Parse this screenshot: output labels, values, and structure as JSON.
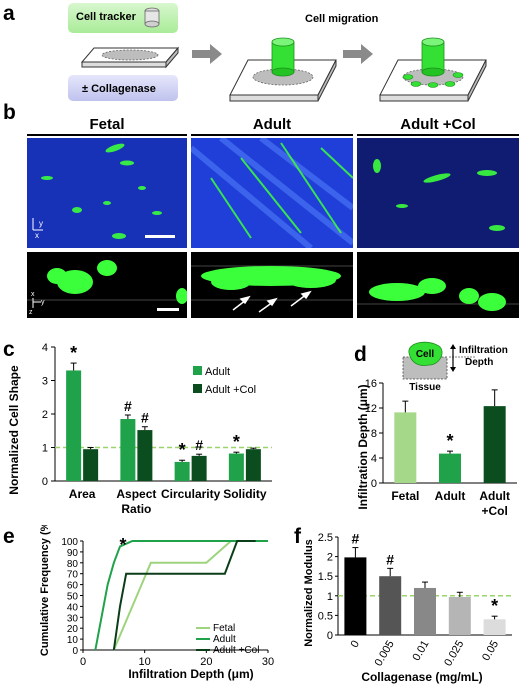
{
  "panels": {
    "a": {
      "label": "a",
      "cell_tracker": "Cell tracker",
      "collagenase": "± Collagenase",
      "cell_migration": "Cell migration",
      "colors": {
        "tracker_bg": "#b9f0a8",
        "collagenase_bg": "#c7c9ef",
        "cell": "#33e033",
        "arrow": "#8a8a8a"
      }
    },
    "b": {
      "label": "b",
      "columns": [
        "Fetal",
        "Adult",
        "Adult +Col"
      ],
      "axis_top": {
        "x": "x",
        "y": "y"
      },
      "axis_bottom": {
        "x": "x",
        "y": "y",
        "z": "z"
      },
      "colors": {
        "tissue": "#1f3fd8",
        "cells": "#3cff3c"
      }
    },
    "c": {
      "label": "c",
      "sig_marks": [
        "*",
        "#",
        "#",
        "*",
        "#",
        "*"
      ]
    },
    "d": {
      "label": "d",
      "cell_label": "Cell",
      "tissue_label": "Tissue",
      "infiltration_label": "Infiltration",
      "depth_label": "Depth",
      "sig_marks": [
        "*"
      ]
    },
    "e": {
      "label": "e",
      "sig_marks": [
        "*"
      ]
    },
    "f": {
      "label": "f",
      "sig_marks": [
        "#",
        "#",
        "*"
      ]
    }
  },
  "chart_data": [
    {
      "id": "c",
      "type": "bar",
      "ylabel": "Normalized Cell Shape",
      "categories": [
        "Area",
        "Aspect Ratio",
        "Circularity",
        "Solidity"
      ],
      "series": [
        {
          "name": "Adult",
          "values": [
            3.3,
            1.85,
            0.57,
            0.82
          ],
          "errors": [
            0.22,
            0.12,
            0.05,
            0.04
          ],
          "color": "#1fa24a"
        },
        {
          "name": "Adult +Col",
          "values": [
            0.95,
            1.52,
            0.75,
            0.95
          ],
          "errors": [
            0.05,
            0.1,
            0.05,
            0.03
          ],
          "color": "#0b4d1f"
        }
      ],
      "reference_line": 1,
      "ylim": [
        0,
        4
      ],
      "yticks": [
        0,
        1,
        2,
        3,
        4
      ],
      "legend_position": "top-right"
    },
    {
      "id": "d",
      "type": "bar",
      "ylabel": "Infiltration Depth (μm)",
      "categories": [
        "Fetal",
        "Adult",
        "Adult +Col"
      ],
      "values": [
        11.3,
        4.7,
        12.3
      ],
      "errors": [
        1.8,
        0.4,
        2.6
      ],
      "colors": [
        "#a6d88a",
        "#1fa24a",
        "#0b4d1f"
      ],
      "ylim": [
        0,
        16
      ],
      "yticks": [
        0,
        4,
        8,
        12,
        16
      ]
    },
    {
      "id": "e",
      "type": "line",
      "ylabel": "Cumulative Frequency (%)",
      "xlabel": "Infiltration Depth (μm)",
      "xlim": [
        0,
        30
      ],
      "ylim": [
        0,
        100
      ],
      "xticks": [
        0,
        10,
        20,
        30
      ],
      "yticks": [
        0,
        10,
        20,
        30,
        40,
        50,
        60,
        70,
        80,
        90,
        100
      ],
      "series": [
        {
          "name": "Fetal",
          "color": "#9ed47e",
          "x": [
            5,
            6.5,
            8,
            9.5,
            11,
            20,
            22,
            24
          ],
          "y": [
            0,
            20,
            40,
            60,
            80,
            80,
            90,
            100
          ]
        },
        {
          "name": "Adult",
          "color": "#1fa24a",
          "x": [
            2,
            3,
            4,
            5,
            6,
            8,
            30
          ],
          "y": [
            0,
            30,
            60,
            80,
            95,
            100,
            100
          ]
        },
        {
          "name": "Adult +Col",
          "color": "#0b3d18",
          "x": [
            5,
            6,
            7,
            8,
            10,
            23,
            25,
            28
          ],
          "y": [
            0,
            40,
            70,
            70,
            70,
            70,
            100,
            100
          ]
        }
      ],
      "legend_position": "bottom-right"
    },
    {
      "id": "f",
      "type": "bar",
      "ylabel": "Normalized Modulus",
      "xlabel": "Collagenase (mg/mL)",
      "categories": [
        "0",
        "0.005",
        "0.01",
        "0.025",
        "0.05"
      ],
      "values": [
        1.98,
        1.5,
        1.2,
        0.97,
        0.4
      ],
      "errors": [
        0.25,
        0.2,
        0.15,
        0.12,
        0.08
      ],
      "colors": [
        "#000000",
        "#555555",
        "#888888",
        "#b5b5b5",
        "#dcdcdc"
      ],
      "reference_line": 1,
      "ylim": [
        0,
        2.5
      ],
      "yticks": [
        0,
        0.5,
        1,
        1.5,
        2,
        2.5
      ]
    }
  ]
}
